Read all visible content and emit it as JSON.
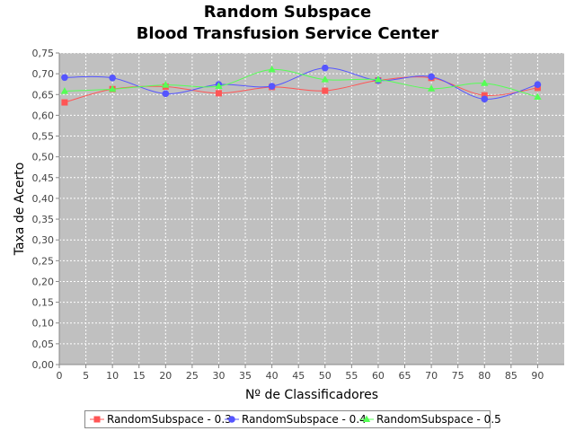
{
  "chart_data": {
    "type": "line",
    "title": "Random Subspace",
    "subtitle": "Blood Transfusion Service Center",
    "xlabel": "Nº de Classificadores",
    "ylabel": "Taxa de Acerto",
    "xlim": [
      0,
      95
    ],
    "ylim": [
      0,
      0.75
    ],
    "x_ticks": [
      "0",
      "5",
      "10",
      "15",
      "20",
      "25",
      "30",
      "35",
      "40",
      "45",
      "50",
      "55",
      "60",
      "65",
      "70",
      "75",
      "80",
      "85",
      "90"
    ],
    "y_ticks": [
      "0,00",
      "0,05",
      "0,10",
      "0,15",
      "0,20",
      "0,25",
      "0,30",
      "0,35",
      "0,40",
      "0,45",
      "0,50",
      "0,55",
      "0,60",
      "0,65",
      "0,70",
      "0,75"
    ],
    "grid": true,
    "legend_position": "bottom",
    "x": [
      1,
      10,
      20,
      30,
      40,
      50,
      60,
      70,
      80,
      90
    ],
    "series": [
      {
        "name": "RandomSubspace - 0.3",
        "color": "#ff5555",
        "marker": "square",
        "values": [
          0.631,
          0.663,
          0.669,
          0.653,
          0.668,
          0.659,
          0.684,
          0.69,
          0.648,
          0.666
        ]
      },
      {
        "name": "RandomSubspace - 0.4",
        "color": "#5555ff",
        "marker": "circle",
        "values": [
          0.691,
          0.69,
          0.652,
          0.674,
          0.67,
          0.714,
          0.684,
          0.693,
          0.639,
          0.674
        ]
      },
      {
        "name": "RandomSubspace - 0.5",
        "color": "#55ff55",
        "marker": "triangle",
        "values": [
          0.658,
          0.663,
          0.673,
          0.67,
          0.71,
          0.686,
          0.686,
          0.664,
          0.677,
          0.644
        ]
      }
    ],
    "plot_background": "#c0c0c0"
  }
}
